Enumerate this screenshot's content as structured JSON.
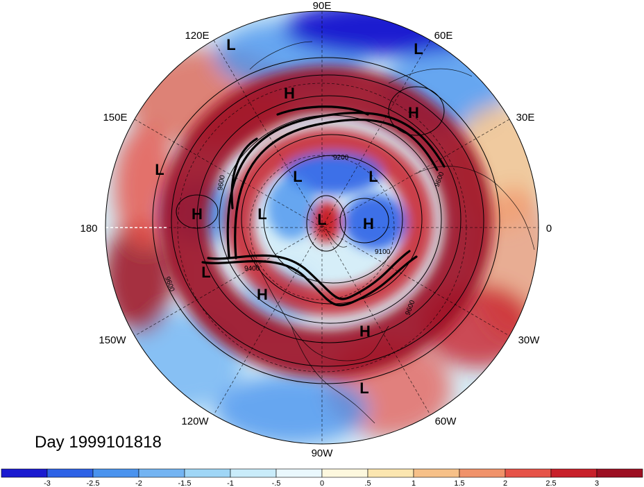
{
  "day_label": "Day 1999101818",
  "longitude_labels": {
    "lon_90e": "90E",
    "lon_120e": "120E",
    "lon_60e": "60E",
    "lon_150e": "150E",
    "lon_30e": "30E",
    "lon_180": "180",
    "lon_0": "0",
    "lon_150w": "150W",
    "lon_30w": "30W",
    "lon_120w": "120W",
    "lon_60w": "60W",
    "lon_90w": "90W"
  },
  "pressure_systems": [
    {
      "label": "L"
    },
    {
      "label": "L"
    },
    {
      "label": "H"
    },
    {
      "label": "H"
    },
    {
      "label": "L"
    },
    {
      "label": "H"
    },
    {
      "label": "L"
    },
    {
      "label": "L"
    },
    {
      "label": "L"
    },
    {
      "label": "L"
    },
    {
      "label": "H"
    },
    {
      "label": "L"
    },
    {
      "label": "H"
    },
    {
      "label": "H"
    },
    {
      "label": "L"
    }
  ],
  "contour_labels": [
    "9200",
    "9600",
    "9600",
    "9400",
    "9100",
    "9600",
    "9600"
  ],
  "colorbar": {
    "colors": [
      "#1a1ad0",
      "#2d62e6",
      "#4a93ee",
      "#73b4f2",
      "#9fd6f6",
      "#c9ecfa",
      "#eaf8fd",
      "#fdf8de",
      "#fbe6b0",
      "#f6c088",
      "#f0926a",
      "#e65348",
      "#c8202a",
      "#9c0f22"
    ],
    "tick_labels": [
      "-3",
      "-2.5",
      "-2",
      "-1.5",
      "-1",
      "-.5",
      "0",
      ".5",
      "1",
      "1.5",
      "2",
      "2.5",
      "3"
    ]
  },
  "colors": {
    "strong_negative": "#1a1ad0",
    "weak_negative": "#9fd6f6",
    "neutral": "#eaf8fd",
    "weak_positive": "#f6c088",
    "strong_positive": "#9c0f22"
  }
}
